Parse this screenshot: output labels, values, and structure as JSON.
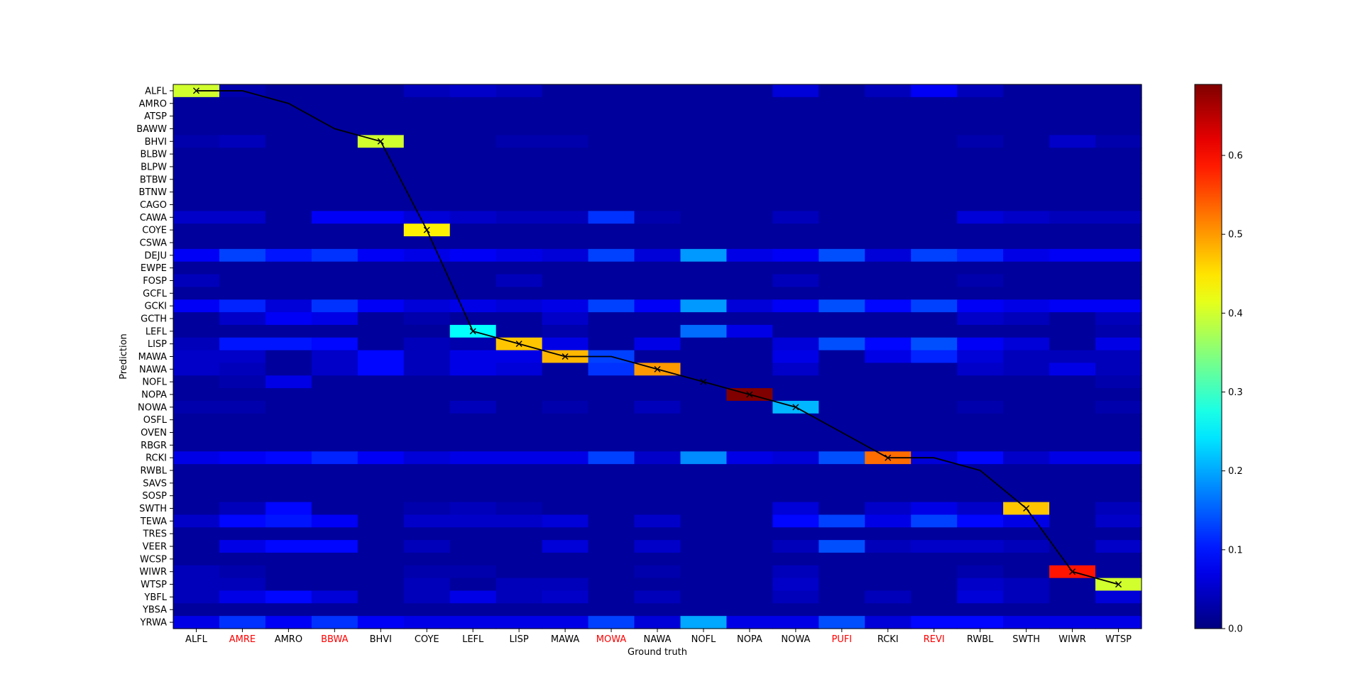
{
  "chart_data": {
    "type": "heatmap",
    "xlabel": "Ground truth",
    "ylabel": "Prediction",
    "x_categories": [
      "ALFL",
      "AMRE",
      "AMRO",
      "BBWA",
      "BHVI",
      "COYE",
      "LEFL",
      "LISP",
      "MAWA",
      "MOWA",
      "NAWA",
      "NOFL",
      "NOPA",
      "NOWA",
      "PUFI",
      "RCKI",
      "REVI",
      "RWBL",
      "SWTH",
      "WIWR",
      "WTSP"
    ],
    "x_highlighted": [
      "AMRE",
      "BBWA",
      "MOWA",
      "PUFI",
      "REVI"
    ],
    "highlight_color": "#ff0000",
    "y_categories": [
      "ALFL",
      "AMRO",
      "ATSP",
      "BAWW",
      "BHVI",
      "BLBW",
      "BLPW",
      "BTBW",
      "BTNW",
      "CAGO",
      "CAWA",
      "COYE",
      "CSWA",
      "DEJU",
      "EWPE",
      "FOSP",
      "GCFL",
      "GCKI",
      "GCTH",
      "LEFL",
      "LISP",
      "MAWA",
      "NAWA",
      "NOFL",
      "NOPA",
      "NOWA",
      "OSFL",
      "OVEN",
      "RBGR",
      "RCKI",
      "RWBL",
      "SAVS",
      "SOSP",
      "SWTH",
      "TEWA",
      "TRES",
      "VEER",
      "WCSP",
      "WIWR",
      "WTSP",
      "YBFL",
      "YBSA",
      "YRWA"
    ],
    "colormap": "jet",
    "color_range": [
      0,
      0.69
    ],
    "colorbar_ticks": [
      "0.0",
      "0.1",
      "0.2",
      "0.3",
      "0.4",
      "0.5",
      "0.6"
    ],
    "background_value": 0.02,
    "cells": [
      [
        "ALFL",
        "ALFL",
        0.4
      ],
      [
        "AMRE",
        "ALFL",
        0.03
      ],
      [
        "COYE",
        "ALFL",
        0.04
      ],
      [
        "LEFL",
        "ALFL",
        0.05
      ],
      [
        "LISP",
        "ALFL",
        0.04
      ],
      [
        "NOWA",
        "ALFL",
        0.06
      ],
      [
        "RCKI",
        "ALFL",
        0.04
      ],
      [
        "REVI",
        "ALFL",
        0.08
      ],
      [
        "RWBL",
        "ALFL",
        0.04
      ],
      [
        "BHVI",
        "BHVI",
        0.4
      ],
      [
        "ALFL",
        "BHVI",
        0.03
      ],
      [
        "AMRE",
        "BHVI",
        0.04
      ],
      [
        "LISP",
        "BHVI",
        0.03
      ],
      [
        "MAWA",
        "BHVI",
        0.03
      ],
      [
        "RWBL",
        "BHVI",
        0.03
      ],
      [
        "WIWR",
        "BHVI",
        0.05
      ],
      [
        "WTSP",
        "BHVI",
        0.03
      ],
      [
        "ALFL",
        "CAWA",
        0.05
      ],
      [
        "AMRE",
        "CAWA",
        0.05
      ],
      [
        "BBWA",
        "CAWA",
        0.08
      ],
      [
        "BHVI",
        "CAWA",
        0.08
      ],
      [
        "COYE",
        "CAWA",
        0.06
      ],
      [
        "LEFL",
        "CAWA",
        0.05
      ],
      [
        "LISP",
        "CAWA",
        0.04
      ],
      [
        "MAWA",
        "CAWA",
        0.04
      ],
      [
        "MOWA",
        "CAWA",
        0.12
      ],
      [
        "NAWA",
        "CAWA",
        0.03
      ],
      [
        "NOWA",
        "CAWA",
        0.04
      ],
      [
        "RWBL",
        "CAWA",
        0.06
      ],
      [
        "SWTH",
        "CAWA",
        0.05
      ],
      [
        "WIWR",
        "CAWA",
        0.04
      ],
      [
        "WTSP",
        "CAWA",
        0.04
      ],
      [
        "COYE",
        "COYE",
        0.44
      ],
      [
        "ALFL",
        "DEJU",
        0.08
      ],
      [
        "AMRE",
        "DEJU",
        0.13
      ],
      [
        "AMRO",
        "DEJU",
        0.1
      ],
      [
        "BBWA",
        "DEJU",
        0.12
      ],
      [
        "BHVI",
        "DEJU",
        0.08
      ],
      [
        "COYE",
        "DEJU",
        0.07
      ],
      [
        "LEFL",
        "DEJU",
        0.08
      ],
      [
        "LISP",
        "DEJU",
        0.07
      ],
      [
        "MAWA",
        "DEJU",
        0.06
      ],
      [
        "MOWA",
        "DEJU",
        0.13
      ],
      [
        "NAWA",
        "DEJU",
        0.06
      ],
      [
        "NOFL",
        "DEJU",
        0.19
      ],
      [
        "NOPA",
        "DEJU",
        0.07
      ],
      [
        "NOWA",
        "DEJU",
        0.08
      ],
      [
        "PUFI",
        "DEJU",
        0.14
      ],
      [
        "RCKI",
        "DEJU",
        0.06
      ],
      [
        "REVI",
        "DEJU",
        0.13
      ],
      [
        "RWBL",
        "DEJU",
        0.11
      ],
      [
        "SWTH",
        "DEJU",
        0.07
      ],
      [
        "WIWR",
        "DEJU",
        0.08
      ],
      [
        "WTSP",
        "DEJU",
        0.08
      ],
      [
        "ALFL",
        "FOSP",
        0.04
      ],
      [
        "LISP",
        "FOSP",
        0.04
      ],
      [
        "NOWA",
        "FOSP",
        0.04
      ],
      [
        "RWBL",
        "FOSP",
        0.03
      ],
      [
        "ALFL",
        "GCKI",
        0.08
      ],
      [
        "AMRE",
        "GCKI",
        0.11
      ],
      [
        "AMRO",
        "GCKI",
        0.06
      ],
      [
        "BBWA",
        "GCKI",
        0.12
      ],
      [
        "BHVI",
        "GCKI",
        0.08
      ],
      [
        "COYE",
        "GCKI",
        0.06
      ],
      [
        "LEFL",
        "GCKI",
        0.07
      ],
      [
        "LISP",
        "GCKI",
        0.06
      ],
      [
        "MAWA",
        "GCKI",
        0.07
      ],
      [
        "MOWA",
        "GCKI",
        0.13
      ],
      [
        "NAWA",
        "GCKI",
        0.08
      ],
      [
        "NOFL",
        "GCKI",
        0.19
      ],
      [
        "NOPA",
        "GCKI",
        0.06
      ],
      [
        "NOWA",
        "GCKI",
        0.08
      ],
      [
        "PUFI",
        "GCKI",
        0.14
      ],
      [
        "RCKI",
        "GCKI",
        0.09
      ],
      [
        "REVI",
        "GCKI",
        0.13
      ],
      [
        "RWBL",
        "GCKI",
        0.08
      ],
      [
        "SWTH",
        "GCKI",
        0.07
      ],
      [
        "WIWR",
        "GCKI",
        0.08
      ],
      [
        "WTSP",
        "GCKI",
        0.08
      ],
      [
        "AMRE",
        "GCTH",
        0.05
      ],
      [
        "AMRO",
        "GCTH",
        0.08
      ],
      [
        "BBWA",
        "GCTH",
        0.07
      ],
      [
        "COYE",
        "GCTH",
        0.03
      ],
      [
        "MAWA",
        "GCTH",
        0.05
      ],
      [
        "RWBL",
        "GCTH",
        0.05
      ],
      [
        "SWTH",
        "GCTH",
        0.04
      ],
      [
        "WTSP",
        "GCTH",
        0.04
      ],
      [
        "LEFL",
        "LEFL",
        0.26
      ],
      [
        "NOFL",
        "LEFL",
        0.16
      ],
      [
        "NOPA",
        "LEFL",
        0.07
      ],
      [
        "MAWA",
        "LEFL",
        0.03
      ],
      [
        "WTSP",
        "LEFL",
        0.03
      ],
      [
        "LISP",
        "LISP",
        0.47
      ],
      [
        "ALFL",
        "LISP",
        0.04
      ],
      [
        "AMRE",
        "LISP",
        0.1
      ],
      [
        "AMRO",
        "LISP",
        0.1
      ],
      [
        "BBWA",
        "LISP",
        0.09
      ],
      [
        "COYE",
        "LISP",
        0.04
      ],
      [
        "LEFL",
        "LISP",
        0.03
      ],
      [
        "MAWA",
        "LISP",
        0.07
      ],
      [
        "NAWA",
        "LISP",
        0.07
      ],
      [
        "NOWA",
        "LISP",
        0.06
      ],
      [
        "PUFI",
        "LISP",
        0.14
      ],
      [
        "RCKI",
        "LISP",
        0.09
      ],
      [
        "REVI",
        "LISP",
        0.14
      ],
      [
        "RWBL",
        "LISP",
        0.08
      ],
      [
        "SWTH",
        "LISP",
        0.06
      ],
      [
        "WTSP",
        "LISP",
        0.07
      ],
      [
        "MAWA",
        "MAWA",
        0.48
      ],
      [
        "ALFL",
        "MAWA",
        0.05
      ],
      [
        "AMRE",
        "MAWA",
        0.05
      ],
      [
        "BBWA",
        "MAWA",
        0.05
      ],
      [
        "BHVI",
        "MAWA",
        0.09
      ],
      [
        "COYE",
        "MAWA",
        0.04
      ],
      [
        "LEFL",
        "MAWA",
        0.07
      ],
      [
        "LISP",
        "MAWA",
        0.07
      ],
      [
        "MOWA",
        "MAWA",
        0.13
      ],
      [
        "NOWA",
        "MAWA",
        0.07
      ],
      [
        "RCKI",
        "MAWA",
        0.07
      ],
      [
        "REVI",
        "MAWA",
        0.11
      ],
      [
        "RWBL",
        "MAWA",
        0.06
      ],
      [
        "SWTH",
        "MAWA",
        0.04
      ],
      [
        "WIWR",
        "MAWA",
        0.04
      ],
      [
        "WTSP",
        "MAWA",
        0.04
      ],
      [
        "NAWA",
        "NAWA",
        0.5
      ],
      [
        "ALFL",
        "NAWA",
        0.05
      ],
      [
        "AMRE",
        "NAWA",
        0.04
      ],
      [
        "BBWA",
        "NAWA",
        0.05
      ],
      [
        "BHVI",
        "NAWA",
        0.09
      ],
      [
        "COYE",
        "NAWA",
        0.04
      ],
      [
        "LEFL",
        "NAWA",
        0.07
      ],
      [
        "LISP",
        "NAWA",
        0.06
      ],
      [
        "MOWA",
        "NAWA",
        0.12
      ],
      [
        "NOWA",
        "NAWA",
        0.05
      ],
      [
        "RWBL",
        "NAWA",
        0.05
      ],
      [
        "SWTH",
        "NAWA",
        0.04
      ],
      [
        "WIWR",
        "NAWA",
        0.07
      ],
      [
        "WTSP",
        "NAWA",
        0.04
      ],
      [
        "AMRO",
        "NOFL",
        0.07
      ],
      [
        "AMRE",
        "NOFL",
        0.03
      ],
      [
        "WTSP",
        "NOFL",
        0.03
      ],
      [
        "NOPA",
        "NOPA",
        0.69
      ],
      [
        "NOWA",
        "NOWA",
        0.21
      ],
      [
        "ALFL",
        "NOWA",
        0.03
      ],
      [
        "AMRE",
        "NOWA",
        0.03
      ],
      [
        "LEFL",
        "NOWA",
        0.04
      ],
      [
        "MAWA",
        "NOWA",
        0.03
      ],
      [
        "NAWA",
        "NOWA",
        0.04
      ],
      [
        "RWBL",
        "NOWA",
        0.03
      ],
      [
        "WTSP",
        "NOWA",
        0.03
      ],
      [
        "RCKI",
        "RCKI",
        0.53
      ],
      [
        "ALFL",
        "RCKI",
        0.07
      ],
      [
        "AMRE",
        "RCKI",
        0.08
      ],
      [
        "AMRO",
        "RCKI",
        0.09
      ],
      [
        "BBWA",
        "RCKI",
        0.11
      ],
      [
        "BHVI",
        "RCKI",
        0.08
      ],
      [
        "COYE",
        "RCKI",
        0.06
      ],
      [
        "LEFL",
        "RCKI",
        0.07
      ],
      [
        "LISP",
        "RCKI",
        0.07
      ],
      [
        "MAWA",
        "RCKI",
        0.07
      ],
      [
        "MOWA",
        "RCKI",
        0.13
      ],
      [
        "NAWA",
        "RCKI",
        0.05
      ],
      [
        "NOFL",
        "RCKI",
        0.18
      ],
      [
        "NOPA",
        "RCKI",
        0.07
      ],
      [
        "NOWA",
        "RCKI",
        0.06
      ],
      [
        "PUFI",
        "RCKI",
        0.14
      ],
      [
        "REVI",
        "RCKI",
        0.06
      ],
      [
        "RWBL",
        "RCKI",
        0.09
      ],
      [
        "SWTH",
        "RCKI",
        0.05
      ],
      [
        "WIWR",
        "RCKI",
        0.07
      ],
      [
        "WTSP",
        "RCKI",
        0.07
      ],
      [
        "SWTH",
        "SWTH",
        0.47
      ],
      [
        "AMRE",
        "SWTH",
        0.04
      ],
      [
        "AMRO",
        "SWTH",
        0.09
      ],
      [
        "COYE",
        "SWTH",
        0.03
      ],
      [
        "LEFL",
        "SWTH",
        0.04
      ],
      [
        "LISP",
        "SWTH",
        0.03
      ],
      [
        "NOWA",
        "SWTH",
        0.06
      ],
      [
        "RCKI",
        "SWTH",
        0.05
      ],
      [
        "REVI",
        "SWTH",
        0.07
      ],
      [
        "RWBL",
        "SWTH",
        0.05
      ],
      [
        "WTSP",
        "SWTH",
        0.04
      ],
      [
        "ALFL",
        "TEWA",
        0.05
      ],
      [
        "AMRE",
        "TEWA",
        0.09
      ],
      [
        "AMRO",
        "TEWA",
        0.1
      ],
      [
        "BBWA",
        "TEWA",
        0.08
      ],
      [
        "COYE",
        "TEWA",
        0.05
      ],
      [
        "LEFL",
        "TEWA",
        0.05
      ],
      [
        "LISP",
        "TEWA",
        0.05
      ],
      [
        "MAWA",
        "TEWA",
        0.06
      ],
      [
        "NAWA",
        "TEWA",
        0.05
      ],
      [
        "NOWA",
        "TEWA",
        0.09
      ],
      [
        "PUFI",
        "TEWA",
        0.13
      ],
      [
        "RCKI",
        "TEWA",
        0.07
      ],
      [
        "REVI",
        "TEWA",
        0.13
      ],
      [
        "RWBL",
        "TEWA",
        0.09
      ],
      [
        "SWTH",
        "TEWA",
        0.07
      ],
      [
        "WTSP",
        "TEWA",
        0.05
      ],
      [
        "AMRE",
        "VEER",
        0.07
      ],
      [
        "AMRO",
        "VEER",
        0.09
      ],
      [
        "BBWA",
        "VEER",
        0.09
      ],
      [
        "COYE",
        "VEER",
        0.04
      ],
      [
        "MAWA",
        "VEER",
        0.06
      ],
      [
        "NAWA",
        "VEER",
        0.05
      ],
      [
        "NOWA",
        "VEER",
        0.04
      ],
      [
        "PUFI",
        "VEER",
        0.14
      ],
      [
        "RCKI",
        "VEER",
        0.04
      ],
      [
        "REVI",
        "VEER",
        0.05
      ],
      [
        "RWBL",
        "VEER",
        0.05
      ],
      [
        "SWTH",
        "VEER",
        0.04
      ],
      [
        "WTSP",
        "VEER",
        0.05
      ],
      [
        "WIWR",
        "WIWR",
        0.59
      ],
      [
        "ALFL",
        "WIWR",
        0.04
      ],
      [
        "AMRE",
        "WIWR",
        0.03
      ],
      [
        "COYE",
        "WIWR",
        0.03
      ],
      [
        "LEFL",
        "WIWR",
        0.03
      ],
      [
        "NAWA",
        "WIWR",
        0.03
      ],
      [
        "NOWA",
        "WIWR",
        0.04
      ],
      [
        "RWBL",
        "WIWR",
        0.03
      ],
      [
        "WTSP",
        "WTSP",
        0.4
      ],
      [
        "ALFL",
        "WTSP",
        0.04
      ],
      [
        "AMRE",
        "WTSP",
        0.04
      ],
      [
        "COYE",
        "WTSP",
        0.04
      ],
      [
        "LISP",
        "WTSP",
        0.04
      ],
      [
        "MAWA",
        "WTSP",
        0.04
      ],
      [
        "NOWA",
        "WTSP",
        0.05
      ],
      [
        "RWBL",
        "WTSP",
        0.05
      ],
      [
        "SWTH",
        "WTSP",
        0.04
      ],
      [
        "ALFL",
        "YBFL",
        0.04
      ],
      [
        "AMRE",
        "YBFL",
        0.07
      ],
      [
        "AMRO",
        "YBFL",
        0.09
      ],
      [
        "BBWA",
        "YBFL",
        0.06
      ],
      [
        "COYE",
        "YBFL",
        0.04
      ],
      [
        "LEFL",
        "YBFL",
        0.07
      ],
      [
        "LISP",
        "YBFL",
        0.04
      ],
      [
        "MAWA",
        "YBFL",
        0.05
      ],
      [
        "NAWA",
        "YBFL",
        0.04
      ],
      [
        "NOWA",
        "YBFL",
        0.04
      ],
      [
        "RCKI",
        "YBFL",
        0.04
      ],
      [
        "RWBL",
        "YBFL",
        0.06
      ],
      [
        "SWTH",
        "YBFL",
        0.04
      ],
      [
        "WTSP",
        "YBFL",
        0.06
      ],
      [
        "ALFL",
        "YRWA",
        0.07
      ],
      [
        "AMRE",
        "YRWA",
        0.12
      ],
      [
        "AMRO",
        "YRWA",
        0.08
      ],
      [
        "BBWA",
        "YRWA",
        0.12
      ],
      [
        "BHVI",
        "YRWA",
        0.08
      ],
      [
        "COYE",
        "YRWA",
        0.07
      ],
      [
        "LEFL",
        "YRWA",
        0.07
      ],
      [
        "LISP",
        "YRWA",
        0.07
      ],
      [
        "MAWA",
        "YRWA",
        0.07
      ],
      [
        "MOWA",
        "YRWA",
        0.13
      ],
      [
        "NAWA",
        "YRWA",
        0.06
      ],
      [
        "NOFL",
        "YRWA",
        0.2
      ],
      [
        "NOPA",
        "YRWA",
        0.07
      ],
      [
        "NOWA",
        "YRWA",
        0.07
      ],
      [
        "PUFI",
        "YRWA",
        0.14
      ],
      [
        "RCKI",
        "YRWA",
        0.06
      ],
      [
        "REVI",
        "YRWA",
        0.09
      ],
      [
        "RWBL",
        "YRWA",
        0.09
      ],
      [
        "SWTH",
        "YRWA",
        0.07
      ],
      [
        "WIWR",
        "YRWA",
        0.07
      ],
      [
        "WTSP",
        "YRWA",
        0.07
      ]
    ],
    "line_color": "#000000",
    "line_points": [
      [
        "ALFL",
        "ALFL"
      ],
      [
        "AMRE",
        "ALFL"
      ],
      [
        "AMRO",
        "AMRO"
      ],
      [
        "BBWA",
        "BAWW"
      ],
      [
        "BHVI",
        "BHVI"
      ],
      [
        "COYE",
        "COYE"
      ],
      [
        "LEFL",
        "LEFL"
      ],
      [
        "LISP",
        "LISP"
      ],
      [
        "MAWA",
        "MAWA"
      ],
      [
        "MOWA",
        "MAWA"
      ],
      [
        "NAWA",
        "NAWA"
      ],
      [
        "NOFL",
        "NOFL"
      ],
      [
        "NOPA",
        "NOPA"
      ],
      [
        "NOWA",
        "NOWA"
      ],
      [
        "PUFI",
        "OVEN"
      ],
      [
        "RCKI",
        "RCKI"
      ],
      [
        "REVI",
        "RCKI"
      ],
      [
        "RWBL",
        "RWBL"
      ],
      [
        "SWTH",
        "SWTH"
      ],
      [
        "WIWR",
        "WIWR"
      ],
      [
        "WTSP",
        "WTSP"
      ]
    ],
    "marked_points": [
      "ALFL",
      "BHVI",
      "COYE",
      "LEFL",
      "LISP",
      "MAWA",
      "NAWA",
      "NOFL",
      "NOPA",
      "NOWA",
      "RCKI",
      "SWTH",
      "WIWR",
      "WTSP"
    ]
  }
}
